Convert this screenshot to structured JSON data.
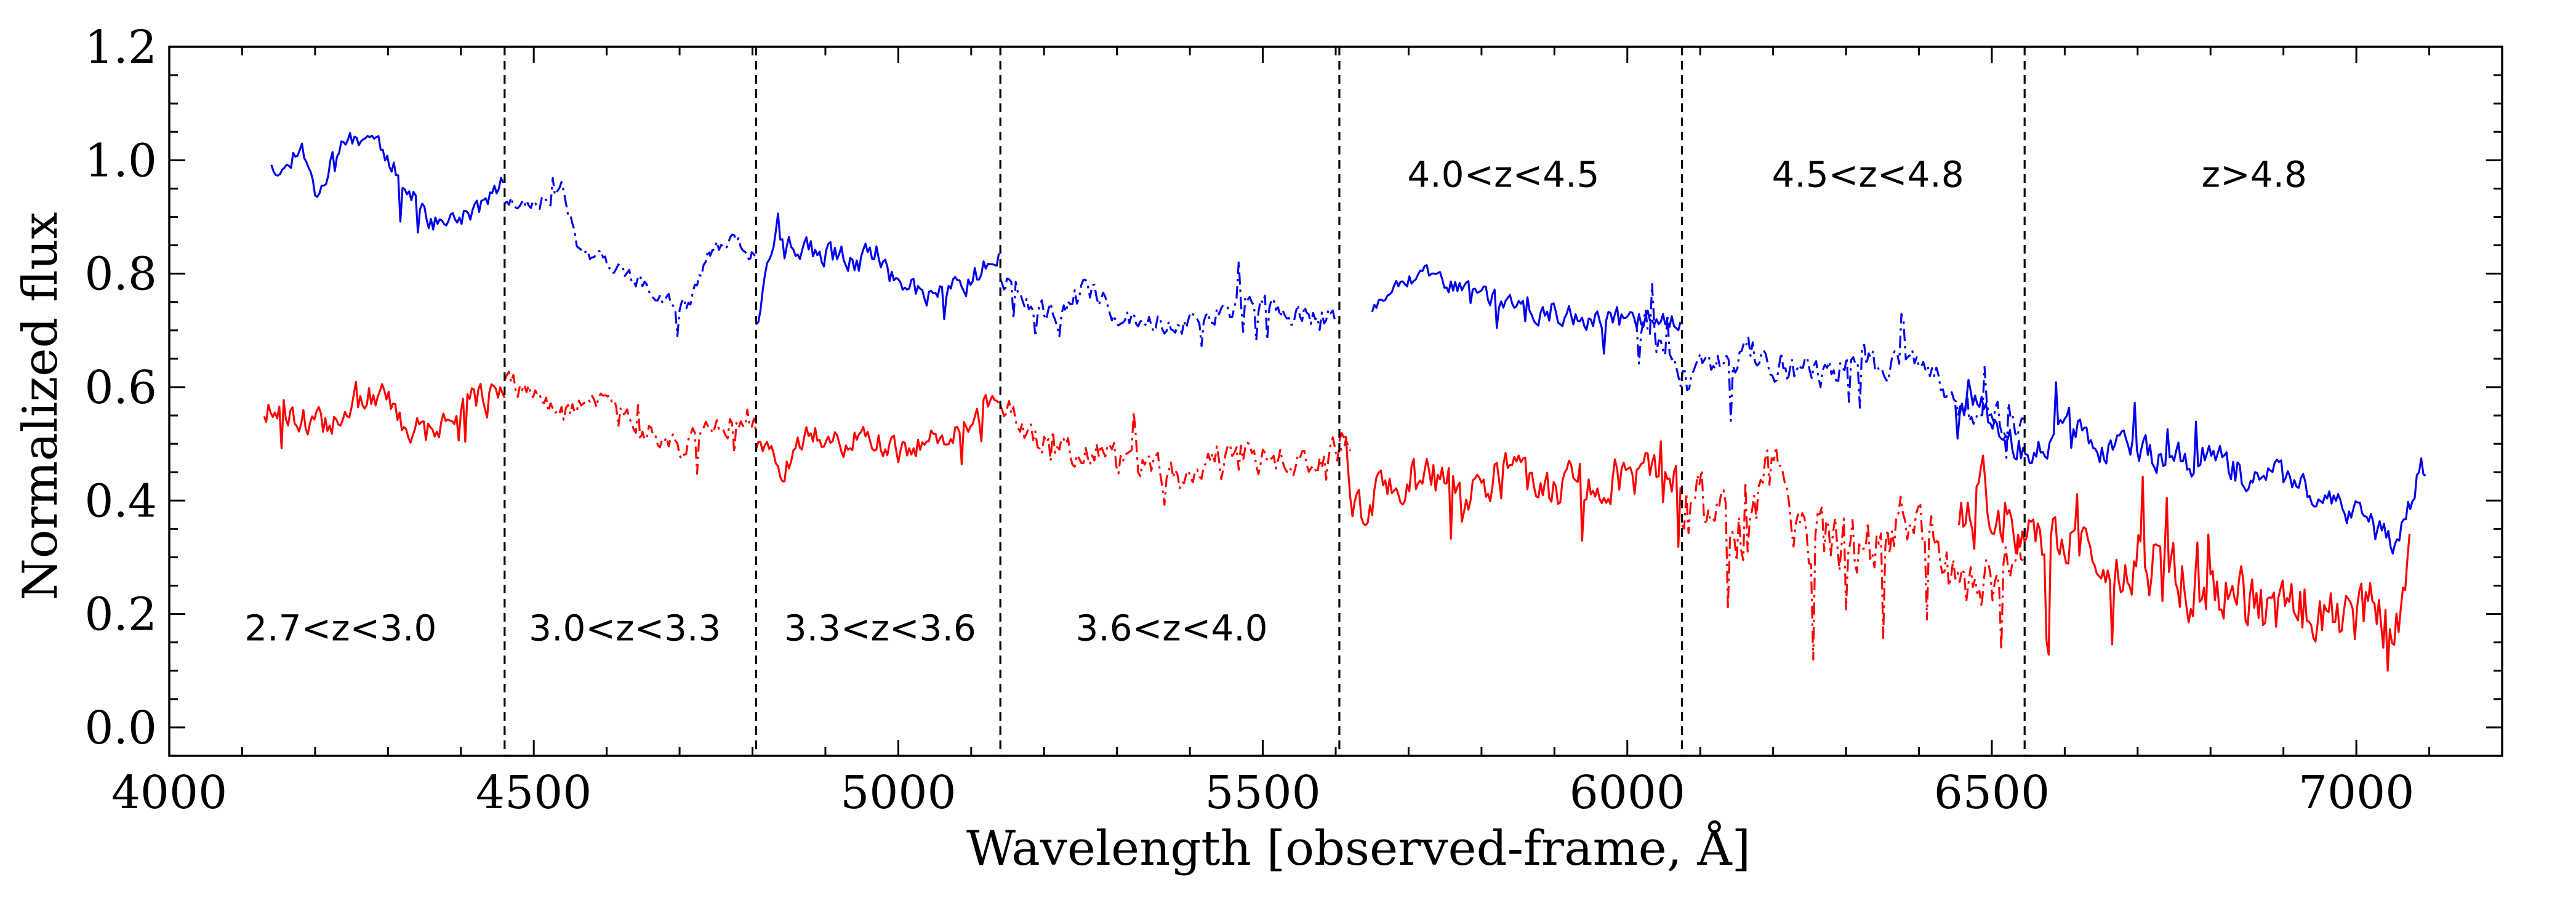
{
  "chart_data": {
    "type": "line",
    "title": "",
    "xlabel": "Wavelength [observed-frame, Å]",
    "ylabel": "Normalized flux",
    "xlim": [
      4000,
      7200
    ],
    "ylim": [
      -0.05,
      1.2
    ],
    "xticks": [
      4000,
      4500,
      5000,
      5500,
      6000,
      6500,
      7000
    ],
    "xtick_labels": [
      "4000",
      "4500",
      "5000",
      "5500",
      "6000",
      "6500",
      "7000"
    ],
    "yticks": [
      0.0,
      0.2,
      0.4,
      0.6,
      0.8,
      1.0,
      1.2
    ],
    "ytick_labels": [
      "0.0",
      "0.2",
      "0.4",
      "0.6",
      "0.8",
      "1.0",
      "1.2"
    ],
    "grid": false,
    "legend": "none",
    "colors": {
      "blue": "#0000ee",
      "red": "#ff0000",
      "divider": "#000000"
    },
    "dividers": [
      4460,
      4805,
      5140,
      5605,
      6075,
      6545
    ],
    "region_labels": [
      {
        "text": "2.7<z<3.0",
        "x": 4235,
        "y": 0.175
      },
      {
        "text": "3.0<z<3.3",
        "x": 4625,
        "y": 0.175
      },
      {
        "text": "3.3<z<3.6",
        "x": 4975,
        "y": 0.175
      },
      {
        "text": "3.6<z<4.0",
        "x": 5375,
        "y": 0.175
      },
      {
        "text": "4.0<z<4.5",
        "x": 5830,
        "y": 0.975
      },
      {
        "text": "4.5<z<4.8",
        "x": 6330,
        "y": 0.975
      },
      {
        "text": "z>4.8",
        "x": 6860,
        "y": 0.975
      }
    ],
    "series": [
      {
        "name": "blue z 2.7-3.0",
        "color": "#0000ee",
        "style": "solid",
        "x_start": 4140,
        "x_end": 4460,
        "anchors": [
          [
            4140,
            1.0
          ],
          [
            4160,
            0.98
          ],
          [
            4180,
            1.04
          ],
          [
            4200,
            0.94
          ],
          [
            4240,
            1.03
          ],
          [
            4280,
            1.05
          ],
          [
            4320,
            0.96
          ],
          [
            4360,
            0.89
          ],
          [
            4400,
            0.9
          ],
          [
            4430,
            0.92
          ],
          [
            4460,
            0.97
          ]
        ],
        "noise": 0.028,
        "seed": 11
      },
      {
        "name": "blue z 3.0-3.3",
        "color": "#0000ee",
        "style": "dashdot",
        "x_start": 4460,
        "x_end": 4805,
        "anchors": [
          [
            4460,
            0.93
          ],
          [
            4500,
            0.92
          ],
          [
            4540,
            0.95
          ],
          [
            4560,
            0.85
          ],
          [
            4600,
            0.82
          ],
          [
            4640,
            0.79
          ],
          [
            4680,
            0.76
          ],
          [
            4710,
            0.74
          ],
          [
            4740,
            0.84
          ],
          [
            4780,
            0.86
          ],
          [
            4805,
            0.84
          ]
        ],
        "noise": 0.022,
        "seed": 23
      },
      {
        "name": "blue z 3.3-3.6",
        "color": "#0000ee",
        "style": "solid",
        "x_start": 4805,
        "x_end": 5140,
        "anchors": [
          [
            4805,
            0.72
          ],
          [
            4830,
            0.86
          ],
          [
            4880,
            0.84
          ],
          [
            4920,
            0.83
          ],
          [
            4960,
            0.82
          ],
          [
            5000,
            0.78
          ],
          [
            5040,
            0.76
          ],
          [
            5080,
            0.77
          ],
          [
            5110,
            0.8
          ],
          [
            5140,
            0.82
          ]
        ],
        "noise": 0.035,
        "seed": 37
      },
      {
        "name": "blue z 3.6-4.0",
        "color": "#0000ee",
        "style": "dashdot",
        "x_start": 5140,
        "x_end": 5605,
        "anchors": [
          [
            5140,
            0.8
          ],
          [
            5180,
            0.74
          ],
          [
            5220,
            0.72
          ],
          [
            5260,
            0.78
          ],
          [
            5300,
            0.73
          ],
          [
            5340,
            0.72
          ],
          [
            5380,
            0.7
          ],
          [
            5420,
            0.72
          ],
          [
            5460,
            0.74
          ],
          [
            5500,
            0.75
          ],
          [
            5540,
            0.73
          ],
          [
            5600,
            0.72
          ]
        ],
        "noise": 0.032,
        "seed": 41
      },
      {
        "name": "blue z 4.0-4.5",
        "color": "#0000ee",
        "style": "solid",
        "x_start": 5650,
        "x_end": 6075,
        "anchors": [
          [
            5650,
            0.74
          ],
          [
            5690,
            0.8
          ],
          [
            5740,
            0.79
          ],
          [
            5790,
            0.77
          ],
          [
            5840,
            0.74
          ],
          [
            5880,
            0.73
          ],
          [
            5930,
            0.72
          ],
          [
            5980,
            0.72
          ],
          [
            6020,
            0.72
          ],
          [
            6075,
            0.71
          ]
        ],
        "noise": 0.028,
        "seed": 53
      },
      {
        "name": "blue z 4.5-4.8",
        "color": "#0000ee",
        "style": "dashdot",
        "x_start": 6010,
        "x_end": 6545,
        "anchors": [
          [
            6010,
            0.73
          ],
          [
            6060,
            0.68
          ],
          [
            6080,
            0.6
          ],
          [
            6120,
            0.65
          ],
          [
            6180,
            0.66
          ],
          [
            6240,
            0.62
          ],
          [
            6300,
            0.64
          ],
          [
            6360,
            0.65
          ],
          [
            6400,
            0.66
          ],
          [
            6450,
            0.58
          ],
          [
            6500,
            0.55
          ],
          [
            6545,
            0.52
          ]
        ],
        "noise": 0.045,
        "seed": 67
      },
      {
        "name": "blue z>4.8",
        "color": "#0000ee",
        "style": "solid",
        "x_start": 6450,
        "x_end": 7095,
        "anchors": [
          [
            6450,
            0.58
          ],
          [
            6500,
            0.55
          ],
          [
            6550,
            0.47
          ],
          [
            6600,
            0.55
          ],
          [
            6650,
            0.5
          ],
          [
            6700,
            0.49
          ],
          [
            6750,
            0.47
          ],
          [
            6800,
            0.48
          ],
          [
            6850,
            0.44
          ],
          [
            6900,
            0.44
          ],
          [
            6950,
            0.4
          ],
          [
            7000,
            0.38
          ],
          [
            7050,
            0.32
          ],
          [
            7080,
            0.42
          ],
          [
            7095,
            0.47
          ]
        ],
        "noise": 0.045,
        "seed": 79
      },
      {
        "name": "red z 2.7-3.0",
        "color": "#ff0000",
        "style": "solid",
        "x_start": 4130,
        "x_end": 4460,
        "anchors": [
          [
            4130,
            0.56
          ],
          [
            4170,
            0.55
          ],
          [
            4210,
            0.53
          ],
          [
            4250,
            0.57
          ],
          [
            4290,
            0.59
          ],
          [
            4330,
            0.52
          ],
          [
            4370,
            0.54
          ],
          [
            4410,
            0.58
          ],
          [
            4460,
            0.58
          ]
        ],
        "noise": 0.04,
        "seed": 13
      },
      {
        "name": "red z 3.0-3.3",
        "color": "#ff0000",
        "style": "dashdot",
        "x_start": 4460,
        "x_end": 4805,
        "anchors": [
          [
            4460,
            0.62
          ],
          [
            4500,
            0.58
          ],
          [
            4540,
            0.55
          ],
          [
            4580,
            0.58
          ],
          [
            4620,
            0.55
          ],
          [
            4660,
            0.52
          ],
          [
            4700,
            0.49
          ],
          [
            4740,
            0.53
          ],
          [
            4780,
            0.54
          ],
          [
            4805,
            0.52
          ]
        ],
        "noise": 0.03,
        "seed": 29
      },
      {
        "name": "red z 3.3-3.6",
        "color": "#ff0000",
        "style": "solid",
        "x_start": 4805,
        "x_end": 5140,
        "anchors": [
          [
            4805,
            0.5
          ],
          [
            4840,
            0.45
          ],
          [
            4880,
            0.52
          ],
          [
            4920,
            0.5
          ],
          [
            4960,
            0.52
          ],
          [
            5000,
            0.48
          ],
          [
            5040,
            0.51
          ],
          [
            5080,
            0.52
          ],
          [
            5120,
            0.56
          ],
          [
            5140,
            0.57
          ]
        ],
        "noise": 0.035,
        "seed": 31
      },
      {
        "name": "red z 3.6-4.0",
        "color": "#ff0000",
        "style": "dashdot",
        "x_start": 5140,
        "x_end": 5620,
        "anchors": [
          [
            5140,
            0.58
          ],
          [
            5180,
            0.52
          ],
          [
            5220,
            0.49
          ],
          [
            5260,
            0.5
          ],
          [
            5300,
            0.47
          ],
          [
            5340,
            0.46
          ],
          [
            5380,
            0.44
          ],
          [
            5420,
            0.47
          ],
          [
            5460,
            0.48
          ],
          [
            5500,
            0.47
          ],
          [
            5540,
            0.47
          ],
          [
            5580,
            0.46
          ],
          [
            5620,
            0.5
          ]
        ],
        "noise": 0.045,
        "seed": 43
      },
      {
        "name": "red z 4.0-4.5",
        "color": "#ff0000",
        "style": "solid",
        "x_start": 5605,
        "x_end": 6075,
        "anchors": [
          [
            5605,
            0.52
          ],
          [
            5630,
            0.38
          ],
          [
            5680,
            0.44
          ],
          [
            5730,
            0.45
          ],
          [
            5780,
            0.4
          ],
          [
            5830,
            0.46
          ],
          [
            5880,
            0.42
          ],
          [
            5930,
            0.43
          ],
          [
            5980,
            0.44
          ],
          [
            6030,
            0.44
          ],
          [
            6075,
            0.43
          ]
        ],
        "noise": 0.06,
        "seed": 59
      },
      {
        "name": "red z 4.5-4.8",
        "color": "#ff0000",
        "style": "dashdot",
        "x_start": 6075,
        "x_end": 6545,
        "anchors": [
          [
            6075,
            0.38
          ],
          [
            6120,
            0.4
          ],
          [
            6160,
            0.34
          ],
          [
            6200,
            0.45
          ],
          [
            6240,
            0.32
          ],
          [
            6280,
            0.34
          ],
          [
            6320,
            0.31
          ],
          [
            6360,
            0.35
          ],
          [
            6400,
            0.38
          ],
          [
            6440,
            0.25
          ],
          [
            6480,
            0.26
          ],
          [
            6520,
            0.28
          ],
          [
            6545,
            0.26
          ]
        ],
        "noise": 0.09,
        "seed": 71
      },
      {
        "name": "red z>4.8",
        "color": "#ff0000",
        "style": "solid",
        "x_start": 6455,
        "x_end": 7075,
        "anchors": [
          [
            6455,
            0.38
          ],
          [
            6500,
            0.42
          ],
          [
            6550,
            0.32
          ],
          [
            6600,
            0.36
          ],
          [
            6650,
            0.28
          ],
          [
            6700,
            0.3
          ],
          [
            6750,
            0.26
          ],
          [
            6800,
            0.24
          ],
          [
            6850,
            0.22
          ],
          [
            6900,
            0.2
          ],
          [
            6950,
            0.22
          ],
          [
            7000,
            0.2
          ],
          [
            7050,
            0.18
          ],
          [
            7075,
            0.3
          ]
        ],
        "noise": 0.09,
        "seed": 83
      }
    ]
  }
}
